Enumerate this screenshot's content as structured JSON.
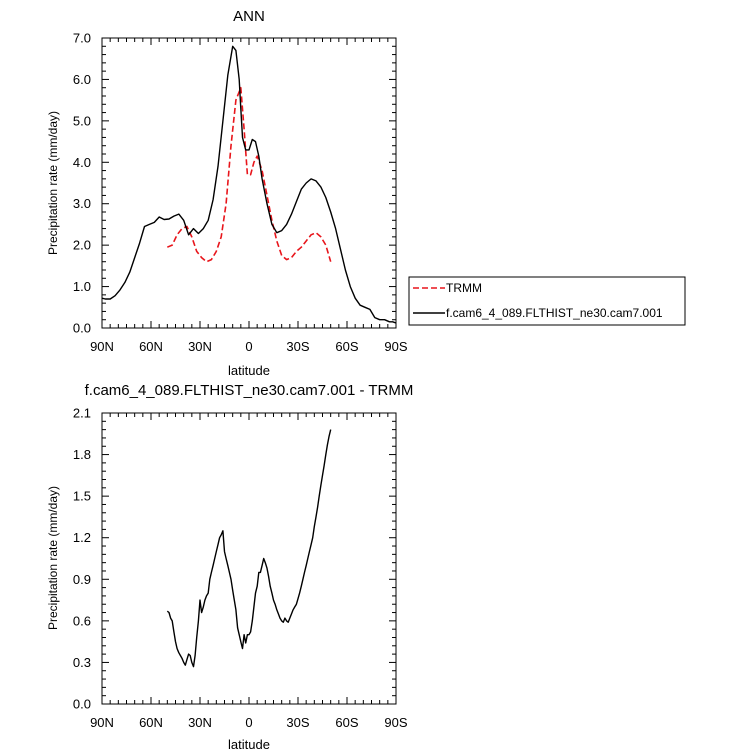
{
  "chart_data": [
    {
      "type": "line",
      "title": "ANN",
      "xlabel": "latitude",
      "ylabel": "Precipitation rate (mm/day)",
      "xlim": [
        90,
        -90
      ],
      "ylim": [
        0,
        7
      ],
      "x_ticks": [
        90,
        60,
        30,
        0,
        -30,
        -60,
        -90
      ],
      "x_tick_labels": [
        "90N",
        "60N",
        "30N",
        "0",
        "30S",
        "60S",
        "90S"
      ],
      "y_ticks": [
        0,
        1,
        2,
        3,
        4,
        5,
        6,
        7
      ],
      "y_tick_labels": [
        "0.0",
        "1.0",
        "2.0",
        "3.0",
        "4.0",
        "5.0",
        "6.0",
        "7.0"
      ],
      "legend_placement": "right",
      "series": [
        {
          "name": "TRMM",
          "color": "#e8151b",
          "dash": "dashed",
          "x": [
            50,
            47,
            44,
            41,
            38,
            35,
            32,
            29,
            26,
            23,
            20,
            17,
            14,
            11,
            8,
            5,
            3,
            1,
            -1,
            -3,
            -5,
            -8,
            -11,
            -14,
            -17,
            -20,
            -23,
            -26,
            -29,
            -32,
            -35,
            -38,
            -41,
            -44,
            -47,
            -50
          ],
          "y": [
            1.95,
            2.0,
            2.25,
            2.4,
            2.45,
            2.2,
            1.85,
            1.7,
            1.6,
            1.65,
            1.85,
            2.2,
            3.0,
            4.4,
            5.5,
            5.8,
            4.8,
            3.7,
            3.7,
            4.0,
            4.15,
            3.8,
            3.2,
            2.6,
            2.1,
            1.75,
            1.65,
            1.7,
            1.85,
            1.95,
            2.1,
            2.25,
            2.3,
            2.2,
            2.0,
            1.6
          ]
        },
        {
          "name": "f.cam6_4_089.FLTHIST_ne30.cam7.001",
          "color": "#000000",
          "dash": "solid",
          "x": [
            90,
            88,
            85,
            82,
            79,
            76,
            73,
            70,
            67,
            64,
            61,
            58,
            55,
            52,
            49,
            46,
            43,
            40,
            37,
            34,
            31,
            28,
            25,
            22,
            19,
            16,
            13,
            10,
            8,
            6,
            5,
            4,
            2,
            0,
            -2,
            -4,
            -6,
            -8,
            -11,
            -14,
            -17,
            -20,
            -23,
            -26,
            -29,
            -32,
            -35,
            -38,
            -41,
            -44,
            -47,
            -50,
            -53,
            -56,
            -59,
            -62,
            -65,
            -68,
            -71,
            -74,
            -77,
            -80,
            -83,
            -86,
            -88,
            -90
          ],
          "y": [
            0.72,
            0.7,
            0.7,
            0.78,
            0.92,
            1.1,
            1.35,
            1.7,
            2.05,
            2.45,
            2.5,
            2.55,
            2.68,
            2.62,
            2.63,
            2.7,
            2.75,
            2.6,
            2.25,
            2.4,
            2.28,
            2.4,
            2.6,
            3.1,
            3.9,
            5.0,
            6.1,
            6.8,
            6.7,
            6.0,
            5.3,
            4.6,
            4.3,
            4.3,
            4.55,
            4.5,
            4.15,
            3.6,
            3.0,
            2.5,
            2.3,
            2.35,
            2.5,
            2.75,
            3.05,
            3.35,
            3.5,
            3.6,
            3.55,
            3.4,
            3.15,
            2.8,
            2.4,
            1.9,
            1.4,
            1.0,
            0.72,
            0.55,
            0.5,
            0.45,
            0.25,
            0.2,
            0.2,
            0.15,
            0.15,
            0.12
          ]
        }
      ]
    },
    {
      "type": "line",
      "title": "f.cam6_4_089.FLTHIST_ne30.cam7.001 - TRMM",
      "xlabel": "latitude",
      "ylabel": "Precipitation rate (mm/day)",
      "xlim": [
        90,
        -90
      ],
      "ylim": [
        0,
        2.1
      ],
      "x_ticks": [
        90,
        60,
        30,
        0,
        -30,
        -60,
        -90
      ],
      "x_tick_labels": [
        "90N",
        "60N",
        "30N",
        "0",
        "30S",
        "60S",
        "90S"
      ],
      "y_ticks": [
        0,
        0.3,
        0.6,
        0.9,
        1.2,
        1.5,
        1.8,
        2.1
      ],
      "y_tick_labels": [
        "0.0",
        "0.3",
        "0.6",
        "0.9",
        "1.2",
        "1.5",
        "1.8",
        "2.1"
      ],
      "series": [
        {
          "color": "#000000",
          "dash": "solid",
          "x": [
            50,
            49,
            48,
            47,
            46,
            45,
            44,
            43,
            42,
            41,
            40,
            39,
            38,
            37,
            36,
            35,
            34,
            33,
            32,
            31,
            30,
            29,
            28,
            27,
            26,
            25,
            24,
            23,
            22,
            21,
            20,
            19,
            18,
            17,
            16,
            15,
            14,
            13,
            12,
            11,
            10,
            9,
            8,
            7,
            6,
            5,
            4,
            3,
            2,
            1,
            0,
            -1,
            -2,
            -3,
            -4,
            -5,
            -6,
            -7,
            -8,
            -9,
            -10,
            -11,
            -12,
            -13,
            -14,
            -15,
            -16,
            -17,
            -18,
            -19,
            -20,
            -21,
            -22,
            -23,
            -24,
            -25,
            -26,
            -27,
            -28,
            -29,
            -30,
            -31,
            -32,
            -33,
            -34,
            -35,
            -36,
            -37,
            -38,
            -39,
            -40,
            -41,
            -42,
            -43,
            -44,
            -45,
            -46,
            -47,
            -48,
            -49,
            -50
          ],
          "y": [
            0.67,
            0.66,
            0.62,
            0.6,
            0.52,
            0.45,
            0.4,
            0.37,
            0.35,
            0.33,
            0.3,
            0.28,
            0.32,
            0.36,
            0.35,
            0.3,
            0.27,
            0.35,
            0.48,
            0.6,
            0.75,
            0.66,
            0.7,
            0.75,
            0.78,
            0.8,
            0.9,
            0.95,
            1.0,
            1.05,
            1.1,
            1.15,
            1.2,
            1.22,
            1.25,
            1.1,
            1.05,
            1.0,
            0.95,
            0.9,
            0.82,
            0.75,
            0.68,
            0.55,
            0.5,
            0.45,
            0.4,
            0.5,
            0.44,
            0.5,
            0.5,
            0.52,
            0.6,
            0.7,
            0.8,
            0.85,
            0.95,
            0.95,
            1.0,
            1.05,
            1.02,
            0.98,
            0.92,
            0.85,
            0.8,
            0.75,
            0.72,
            0.68,
            0.65,
            0.62,
            0.6,
            0.59,
            0.62,
            0.6,
            0.59,
            0.62,
            0.65,
            0.68,
            0.7,
            0.72,
            0.76,
            0.8,
            0.85,
            0.9,
            0.95,
            1.0,
            1.05,
            1.1,
            1.15,
            1.2,
            1.28,
            1.35,
            1.42,
            1.5,
            1.58,
            1.65,
            1.72,
            1.8,
            1.87,
            1.93,
            1.98
          ]
        }
      ]
    }
  ]
}
